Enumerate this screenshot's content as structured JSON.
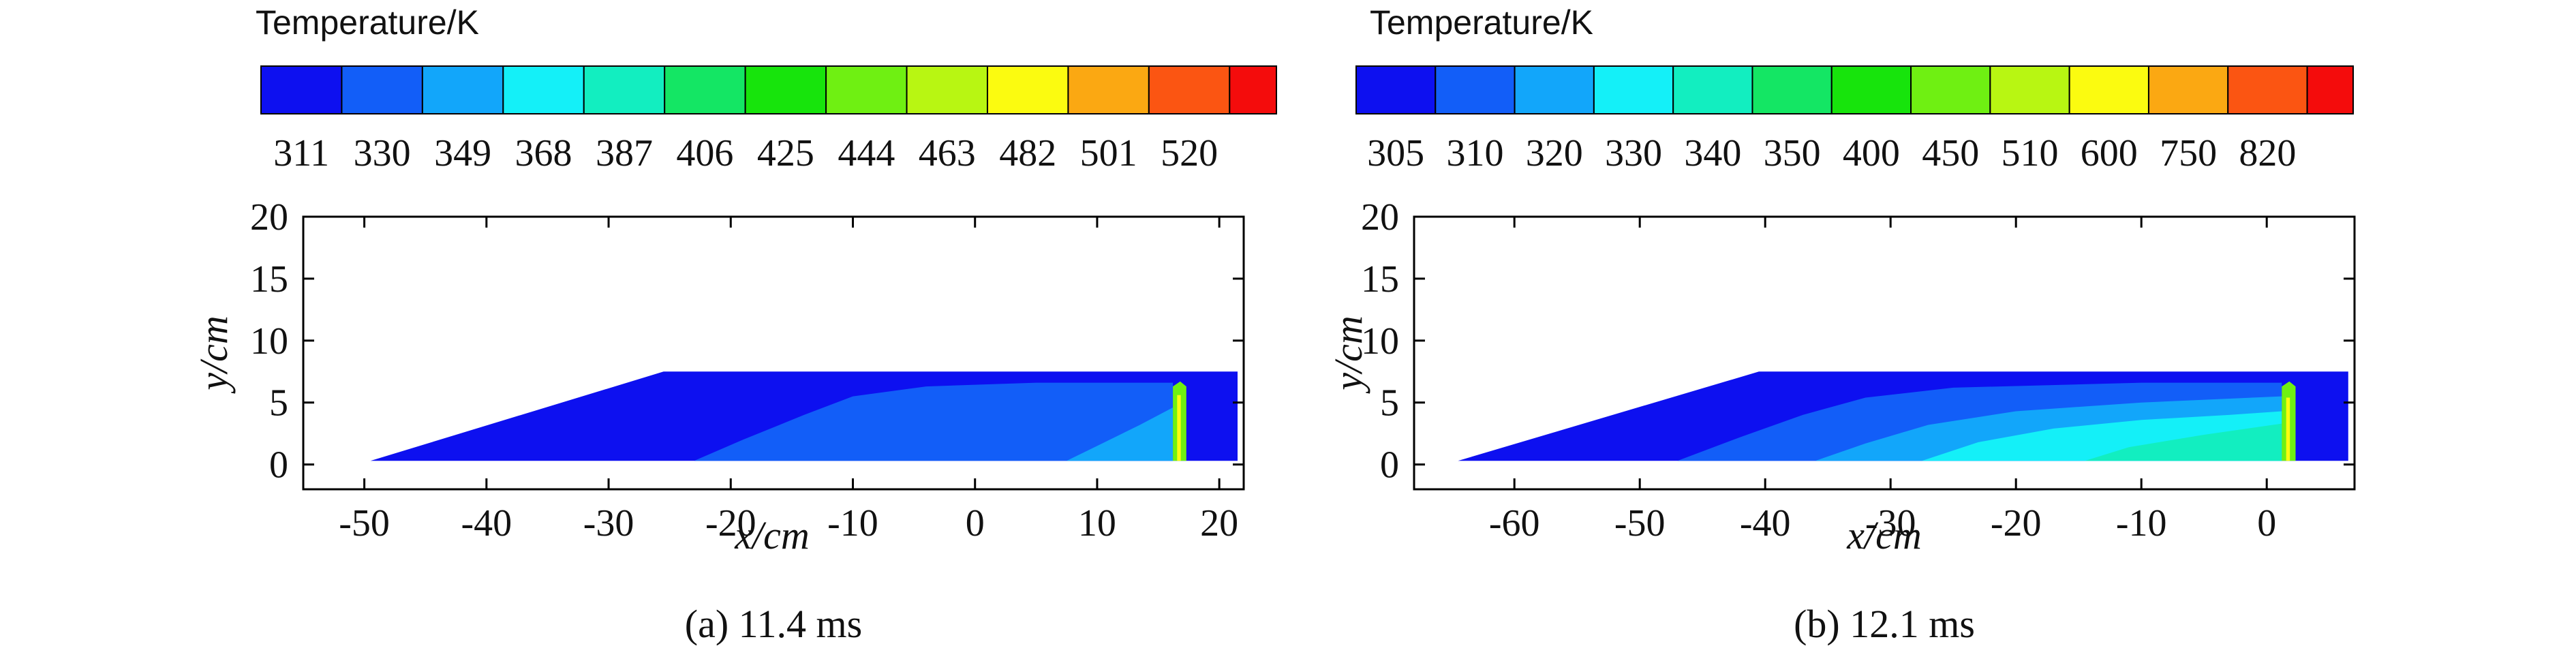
{
  "chart_data": [
    {
      "type": "heatmap",
      "id": "a",
      "caption": "(a) 11.4 ms",
      "colorbar": {
        "title": "Temperature/K",
        "levels": [
          311,
          330,
          349,
          368,
          387,
          406,
          425,
          444,
          463,
          482,
          501,
          520
        ],
        "colors": [
          "#0d10f0",
          "#125ef8",
          "#12a6fa",
          "#14f0f8",
          "#12eec0",
          "#14e664",
          "#17e40c",
          "#6ff012",
          "#b8f612",
          "#fbfb10",
          "#fba812",
          "#fb5512",
          "#f40c0c"
        ]
      },
      "xlabel": "x/cm",
      "ylabel": "y/cm",
      "xlim": [
        -55,
        22
      ],
      "ylim": [
        -2,
        20
      ],
      "xticks": [
        -50,
        -40,
        -30,
        -20,
        -10,
        0,
        10,
        20
      ],
      "yticks": [
        0,
        5,
        10,
        15,
        20
      ],
      "domain_outline": [
        [
          -49.5,
          0.3
        ],
        [
          -25.5,
          7.5
        ],
        [
          21.5,
          7.5
        ],
        [
          21.5,
          0.3
        ]
      ],
      "regions": [
        {
          "level": "311",
          "color": "#0d10f0",
          "outline": [
            [
              -49.5,
              0.3
            ],
            [
              -25.5,
              7.5
            ],
            [
              21.5,
              7.5
            ],
            [
              21.5,
              0.3
            ]
          ]
        },
        {
          "level": "330",
          "color": "#125ef8",
          "outline": [
            [
              -23,
              0.3
            ],
            [
              -19,
              2
            ],
            [
              -14,
              4
            ],
            [
              -10,
              5.5
            ],
            [
              -4,
              6.3
            ],
            [
              5,
              6.6
            ],
            [
              16.2,
              6.6
            ],
            [
              16.2,
              0.3
            ]
          ]
        },
        {
          "level": "349",
          "color": "#12a6fa",
          "outline": [
            [
              7.5,
              0.3
            ],
            [
              10,
              1.5
            ],
            [
              13.5,
              3.2
            ],
            [
              16.2,
              4.6
            ],
            [
              16.2,
              0.3
            ]
          ]
        },
        {
          "level": "450-520",
          "color": "#6ff012",
          "outline": [
            [
              16.2,
              0.3
            ],
            [
              16.2,
              6.3
            ],
            [
              16.8,
              6.7
            ],
            [
              17.3,
              6.3
            ],
            [
              17.3,
              0.3
            ]
          ]
        },
        {
          "level": "482-520",
          "color": "#fbfb10",
          "outline": [
            [
              16.55,
              0.3
            ],
            [
              16.55,
              5.6
            ],
            [
              16.85,
              5.6
            ],
            [
              16.85,
              0.3
            ]
          ]
        }
      ]
    },
    {
      "type": "heatmap",
      "id": "b",
      "caption": "(b) 12.1 ms",
      "colorbar": {
        "title": "Temperature/K",
        "levels": [
          305,
          310,
          320,
          330,
          340,
          350,
          400,
          450,
          510,
          600,
          750,
          820
        ],
        "colors": [
          "#0d10f0",
          "#125ef8",
          "#12a6fa",
          "#14f0f8",
          "#12eec0",
          "#14e664",
          "#17e40c",
          "#6ff012",
          "#b8f612",
          "#fbfb10",
          "#fba812",
          "#fb5512",
          "#f40c0c"
        ]
      },
      "xlabel": "x/cm",
      "ylabel": "y/cm",
      "xlim": [
        -68,
        7
      ],
      "ylim": [
        -2,
        20
      ],
      "xticks": [
        -60,
        -50,
        -40,
        -30,
        -20,
        -10,
        0
      ],
      "yticks": [
        0,
        5,
        10,
        15,
        20
      ],
      "domain_outline": [
        [
          -64.5,
          0.3
        ],
        [
          -40.5,
          7.5
        ],
        [
          6.5,
          7.5
        ],
        [
          6.5,
          0.3
        ]
      ],
      "regions": [
        {
          "level": "305",
          "color": "#0d10f0",
          "outline": [
            [
              -64.5,
              0.3
            ],
            [
              -40.5,
              7.5
            ],
            [
              6.5,
              7.5
            ],
            [
              6.5,
              0.3
            ]
          ]
        },
        {
          "level": "310",
          "color": "#125ef8",
          "outline": [
            [
              -47,
              0.3
            ],
            [
              -42,
              2.2
            ],
            [
              -37,
              4
            ],
            [
              -32,
              5.4
            ],
            [
              -25,
              6.2
            ],
            [
              -10,
              6.6
            ],
            [
              1.2,
              6.6
            ],
            [
              1.2,
              0.3
            ]
          ]
        },
        {
          "level": "320",
          "color": "#12a6fa",
          "outline": [
            [
              -36,
              0.3
            ],
            [
              -32,
              1.7
            ],
            [
              -27,
              3.2
            ],
            [
              -20,
              4.3
            ],
            [
              -10,
              5
            ],
            [
              1.2,
              5.5
            ],
            [
              1.2,
              0.3
            ]
          ]
        },
        {
          "level": "330",
          "color": "#14f0f8",
          "outline": [
            [
              -27.5,
              0.3
            ],
            [
              -23,
              1.8
            ],
            [
              -17,
              2.9
            ],
            [
              -10,
              3.6
            ],
            [
              -3,
              4
            ],
            [
              1.2,
              4.3
            ],
            [
              1.2,
              0.3
            ]
          ]
        },
        {
          "level": "340",
          "color": "#12eec0",
          "outline": [
            [
              -14.5,
              0.3
            ],
            [
              -11,
              1.4
            ],
            [
              -5,
              2.4
            ],
            [
              1.2,
              3.3
            ],
            [
              1.2,
              0.3
            ]
          ]
        },
        {
          "level": "400-510",
          "color": "#6ff012",
          "outline": [
            [
              1.2,
              0.3
            ],
            [
              1.2,
              6.3
            ],
            [
              1.8,
              6.7
            ],
            [
              2.3,
              6.3
            ],
            [
              2.3,
              0.3
            ]
          ]
        },
        {
          "level": "600",
          "color": "#fbfb10",
          "outline": [
            [
              1.55,
              0.3
            ],
            [
              1.55,
              5.4
            ],
            [
              1.85,
              5.4
            ],
            [
              1.85,
              0.3
            ]
          ]
        }
      ]
    }
  ]
}
